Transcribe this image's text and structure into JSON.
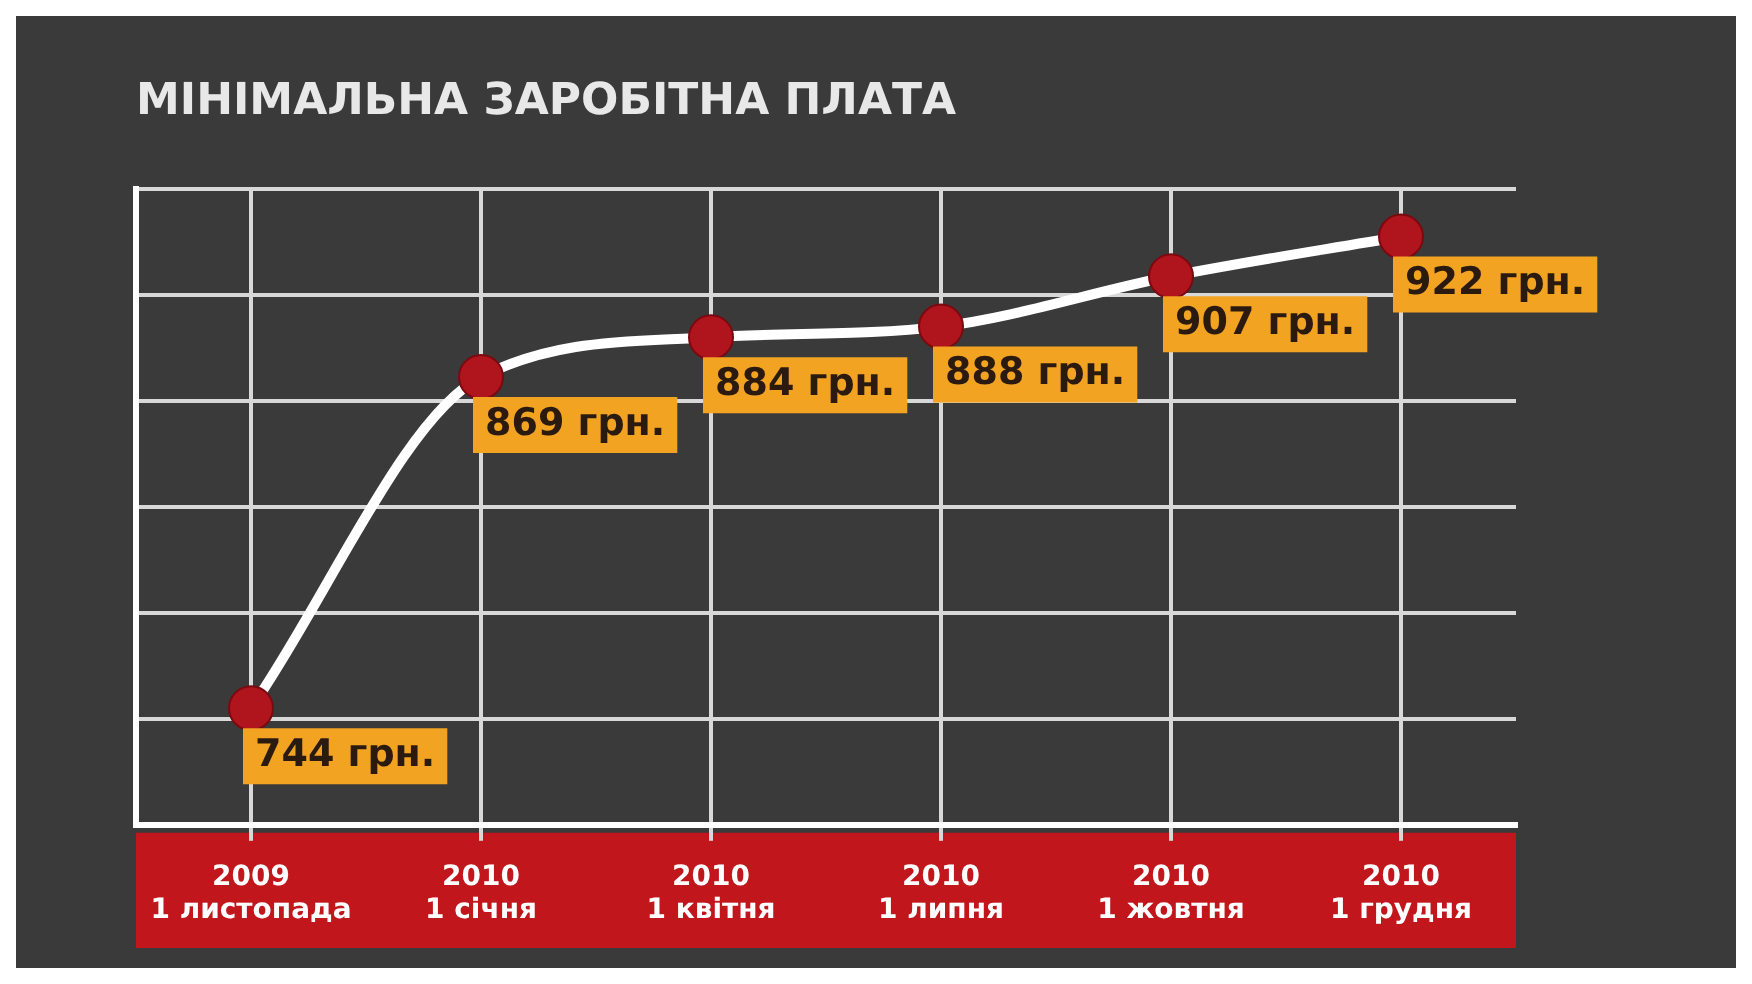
{
  "chart_data": {
    "type": "line",
    "title": "МІНІМАЛЬНА ЗАРОБІТНА ПЛАТА",
    "categories": [
      "2009\n1 листопада",
      "2010\n1 січня",
      "2010\n1 квітня",
      "2010\n1 липня",
      "2010\n1 жовтня",
      "2010\n1 грудня"
    ],
    "series": [
      {
        "color": "#ffffff",
        "values": [
          744,
          869,
          884,
          888,
          907,
          922
        ],
        "value_labels": [
          "744 грн.",
          "869 грн.",
          "884 грн.",
          "888 грн.",
          "907 грн.",
          "922 грн."
        ]
      }
    ],
    "marker": "circle",
    "line_style": "solid",
    "grid": true,
    "legend": false,
    "tick_labels": "x",
    "ylim": [
      700,
      940
    ],
    "yticks": [
      {
        "value": 700,
        "label": null
      },
      {
        "value": 740,
        "label": null
      },
      {
        "value": 780,
        "label": null
      },
      {
        "value": 820,
        "label": null
      },
      {
        "value": 860,
        "label": null
      },
      {
        "value": 900,
        "label": null
      },
      {
        "value": 940,
        "label": null
      }
    ]
  }
}
